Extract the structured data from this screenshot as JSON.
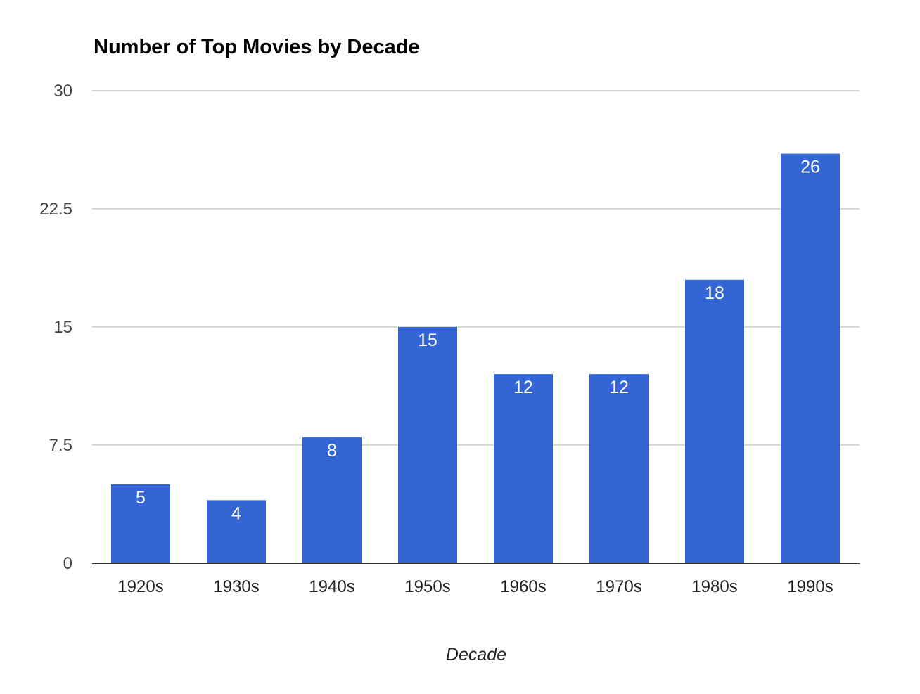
{
  "chart_data": {
    "type": "bar",
    "title": "Number of Top Movies by Decade",
    "xlabel": "Decade",
    "ylabel": "",
    "categories": [
      "1920s",
      "1930s",
      "1940s",
      "1950s",
      "1960s",
      "1970s",
      "1980s",
      "1990s"
    ],
    "values": [
      5,
      4,
      8,
      15,
      12,
      12,
      18,
      26
    ],
    "data_labels": [
      "5",
      "4",
      "8",
      "15",
      "12",
      "12",
      "18",
      "26"
    ],
    "ylim": [
      0,
      30
    ],
    "yticks": [
      0,
      7.5,
      15,
      22.5,
      30
    ],
    "ytick_labels": [
      "0",
      "7.5",
      "15",
      "22.5",
      "30"
    ],
    "grid": true,
    "legend": "none",
    "bar_color": "#3366d4"
  }
}
